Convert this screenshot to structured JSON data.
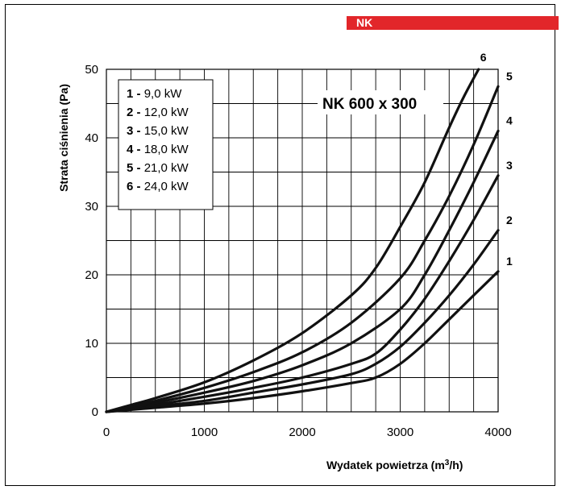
{
  "header": {
    "tag": "NK"
  },
  "chart_data": {
    "type": "line",
    "title": "NK 600 x 300",
    "xlabel": "Wydatek powietrza (m³/h)",
    "ylabel": "Strata ciśnienia (Pa)",
    "xlim": [
      0,
      4000
    ],
    "ylim": [
      0,
      50
    ],
    "xticks": [
      "0",
      "1000",
      "2000",
      "3000",
      "4000"
    ],
    "yticks": [
      "0",
      "10",
      "20",
      "30",
      "40",
      "50"
    ],
    "grid": true,
    "legend_position": "top-left",
    "line_color": "#111111",
    "series": [
      {
        "id": "1",
        "legend_num": "1 -",
        "legend_val": "9,0 kW",
        "x": [
          0,
          250,
          500,
          1000,
          1500,
          2000,
          2500,
          2750,
          3000,
          3250,
          3500,
          3750,
          4000
        ],
        "y": [
          0,
          0.3,
          0.6,
          1.2,
          2.0,
          3.0,
          4.2,
          5.0,
          7.0,
          10.0,
          13.5,
          17.0,
          20.5
        ]
      },
      {
        "id": "2",
        "legend_num": "2 -",
        "legend_val": "12,0 kW",
        "x": [
          0,
          250,
          500,
          1000,
          1500,
          2000,
          2500,
          2750,
          3000,
          3250,
          3500,
          3750,
          4000
        ],
        "y": [
          0,
          0.4,
          0.8,
          1.6,
          2.8,
          4.0,
          5.5,
          7.0,
          9.5,
          13.0,
          17.0,
          21.5,
          26.5
        ]
      },
      {
        "id": "3",
        "legend_num": "3 -",
        "legend_val": "15,0 kW",
        "x": [
          0,
          250,
          500,
          1000,
          1500,
          2000,
          2500,
          2750,
          3000,
          3250,
          3500,
          3750,
          4000
        ],
        "y": [
          0,
          0.5,
          1.0,
          2.2,
          3.5,
          5.0,
          7.0,
          8.5,
          12.0,
          16.5,
          22.0,
          28.0,
          34.5
        ]
      },
      {
        "id": "4",
        "legend_num": "4 -",
        "legend_val": "18,0 kW",
        "x": [
          0,
          250,
          500,
          1000,
          1500,
          2000,
          2500,
          3000,
          3250,
          3500,
          3750,
          4000
        ],
        "y": [
          0,
          0.6,
          1.3,
          2.8,
          4.5,
          6.8,
          10.0,
          15.0,
          20.0,
          26.5,
          33.5,
          41.0
        ]
      },
      {
        "id": "5",
        "legend_num": "5 -",
        "legend_val": "21,0 kW",
        "x": [
          0,
          250,
          500,
          1000,
          1500,
          2000,
          2500,
          3000,
          3250,
          3500,
          3750,
          4000
        ],
        "y": [
          0,
          0.8,
          1.6,
          3.5,
          5.8,
          8.7,
          13.0,
          19.5,
          25.0,
          31.5,
          39.0,
          47.5
        ]
      },
      {
        "id": "6",
        "legend_num": "6 -",
        "legend_val": "24,0 kW",
        "x": [
          0,
          250,
          500,
          1000,
          1500,
          2000,
          2500,
          2750,
          3000,
          3250,
          3500,
          3650,
          3800
        ],
        "y": [
          0,
          1.0,
          2.0,
          4.3,
          7.5,
          11.5,
          17.0,
          21.0,
          27.0,
          33.5,
          41.5,
          46.0,
          50.0
        ]
      }
    ]
  }
}
